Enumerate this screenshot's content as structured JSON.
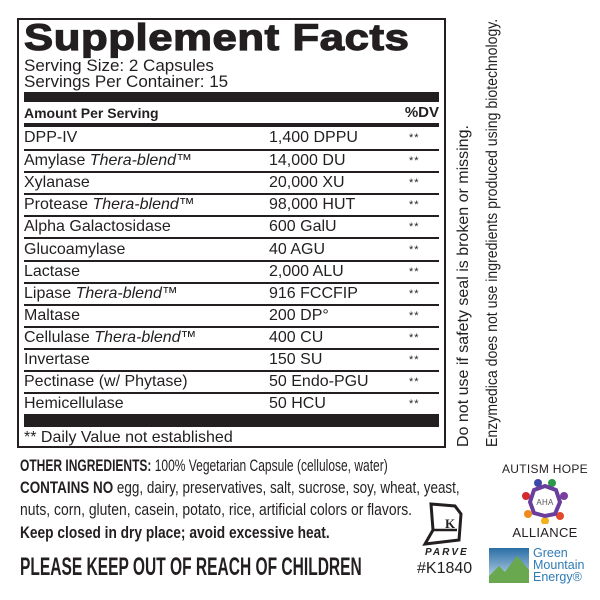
{
  "title": "Supplement Facts",
  "serving_size": "Serving Size: 2 Capsules",
  "servings_per_container": "Servings Per Container: 15",
  "header": {
    "amount": "Amount Per Serving",
    "dv": "%DV"
  },
  "rows": [
    {
      "name": "DPP-IV",
      "blend": "",
      "amount": "1,400 DPPU",
      "dv": "**"
    },
    {
      "name": "Amylase ",
      "blend": "Thera-blend™",
      "amount": "14,000 DU",
      "dv": "**"
    },
    {
      "name": "Xylanase",
      "blend": "",
      "amount": "20,000 XU",
      "dv": "**"
    },
    {
      "name": "Protease ",
      "blend": "Thera-blend™",
      "amount": "98,000 HUT",
      "dv": "**"
    },
    {
      "name": "Alpha Galactosidase",
      "blend": "",
      "amount": "600 GalU",
      "dv": "**"
    },
    {
      "name": "Glucoamylase",
      "blend": "",
      "amount": "40 AGU",
      "dv": "**"
    },
    {
      "name": "Lactase",
      "blend": "",
      "amount": "2,000 ALU",
      "dv": "**"
    },
    {
      "name": "Lipase ",
      "blend": "Thera-blend™",
      "amount": "916 FCCFIP",
      "dv": "**"
    },
    {
      "name": "Maltase",
      "blend": "",
      "amount": "200 DP°",
      "dv": "**"
    },
    {
      "name": "Cellulase ",
      "blend": "Thera-blend™",
      "amount": "400 CU",
      "dv": "**"
    },
    {
      "name": "Invertase",
      "blend": "",
      "amount": "150 SU",
      "dv": "**"
    },
    {
      "name": "Pectinase (w/ Phytase)",
      "blend": "",
      "amount": "50 Endo-PGU",
      "dv": "**"
    },
    {
      "name": "Hemicellulase",
      "blend": "",
      "amount": "50 HCU",
      "dv": "**"
    }
  ],
  "footnote": "** Daily Value not established",
  "side_text": [
    "Do not use if safety seal is broken or missing.",
    "Enzymedica does not use ingredients produced using biotechnology."
  ],
  "other_ingredients": {
    "label": "OTHER INGREDIENTS:",
    "text": " 100% Vegetarian Capsule (cellulose, water)"
  },
  "contains_no": {
    "label": "CONTAINS NO",
    "text": " egg, dairy, preservatives, salt, sucrose, soy, wheat, yeast,",
    "text2": "nuts, corn, gluten, casein, potato, rice, artificial colors or flavors."
  },
  "storage": "Keep closed in dry place; avoid excessive heat.",
  "warning": "PLEASE KEEP OUT OF REACH OF CHILDREN",
  "kosher": {
    "letter": "K",
    "label": "PARVE",
    "number": "#K1840"
  },
  "aha_logo": {
    "top": "AUTISM HOPE",
    "center": "AHA",
    "bottom": "ALLIANCE"
  },
  "gme_logo": {
    "line1": "Green",
    "line2": "Mountain",
    "line3": "Energy®"
  },
  "colors": {
    "text": "#231f20",
    "gme_blue": "#2f7bb5",
    "gme_green": "#6aa84f"
  }
}
